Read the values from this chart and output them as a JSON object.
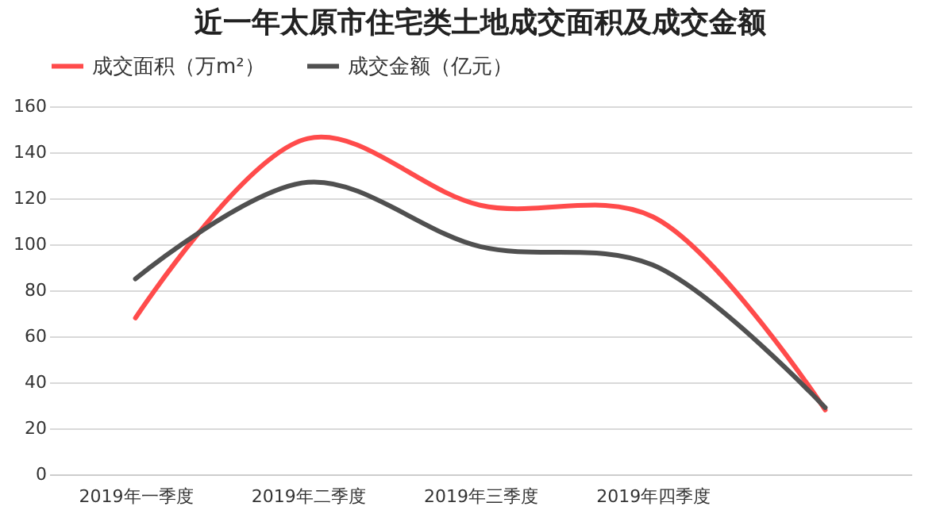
{
  "chart_data": {
    "type": "line",
    "title": "近一年太原市住宅类土地成交面积及成交金额",
    "categories": [
      "2019年一季度",
      "2019年二季度",
      "2019年三季度",
      "2019年四季度",
      null
    ],
    "series": [
      {
        "name": "成交面积（万m²）",
        "color": "#ff4b4b",
        "values": [
          68,
          146,
          117,
          112,
          28
        ]
      },
      {
        "name": "成交金额（亿元）",
        "color": "#505050",
        "values": [
          85,
          127,
          99,
          91,
          29
        ]
      }
    ],
    "ylim": [
      0,
      160
    ],
    "yticks": [
      0,
      20,
      40,
      60,
      80,
      100,
      120,
      140,
      160
    ],
    "grid": "y",
    "legend": "top",
    "marker": "none",
    "line_style": "solid"
  }
}
